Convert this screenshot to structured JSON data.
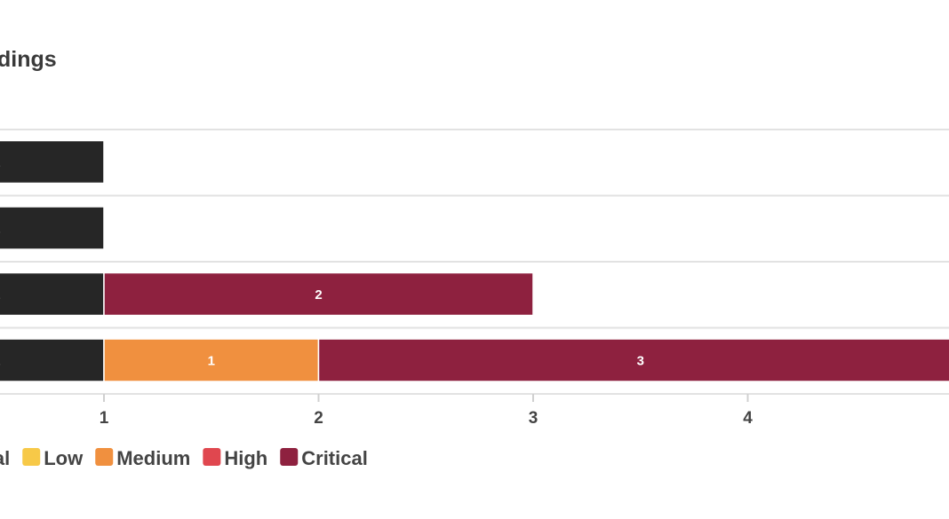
{
  "chart_data": {
    "type": "bar",
    "orientation": "horizontal",
    "stacked": true,
    "title": "dings",
    "xlabel": "",
    "ylabel": "",
    "categories": [
      "",
      "",
      "",
      ""
    ],
    "xlim": [
      0,
      5
    ],
    "x_ticks": [
      1,
      2,
      3,
      4
    ],
    "grid": true,
    "legend_position": "bottom",
    "series": [
      {
        "name": "onal",
        "color": "#262626",
        "values": [
          1,
          1,
          1,
          1
        ]
      },
      {
        "name": "Low",
        "color": "#f7c948",
        "values": [
          0,
          0,
          0,
          0
        ]
      },
      {
        "name": "Medium",
        "color": "#f0903f",
        "values": [
          0,
          0,
          0,
          1
        ]
      },
      {
        "name": "High",
        "color": "#e0474f",
        "values": [
          0,
          0,
          0,
          0
        ]
      },
      {
        "name": "Critical",
        "color": "#8e213f",
        "values": [
          0,
          0,
          2,
          3
        ]
      }
    ]
  }
}
